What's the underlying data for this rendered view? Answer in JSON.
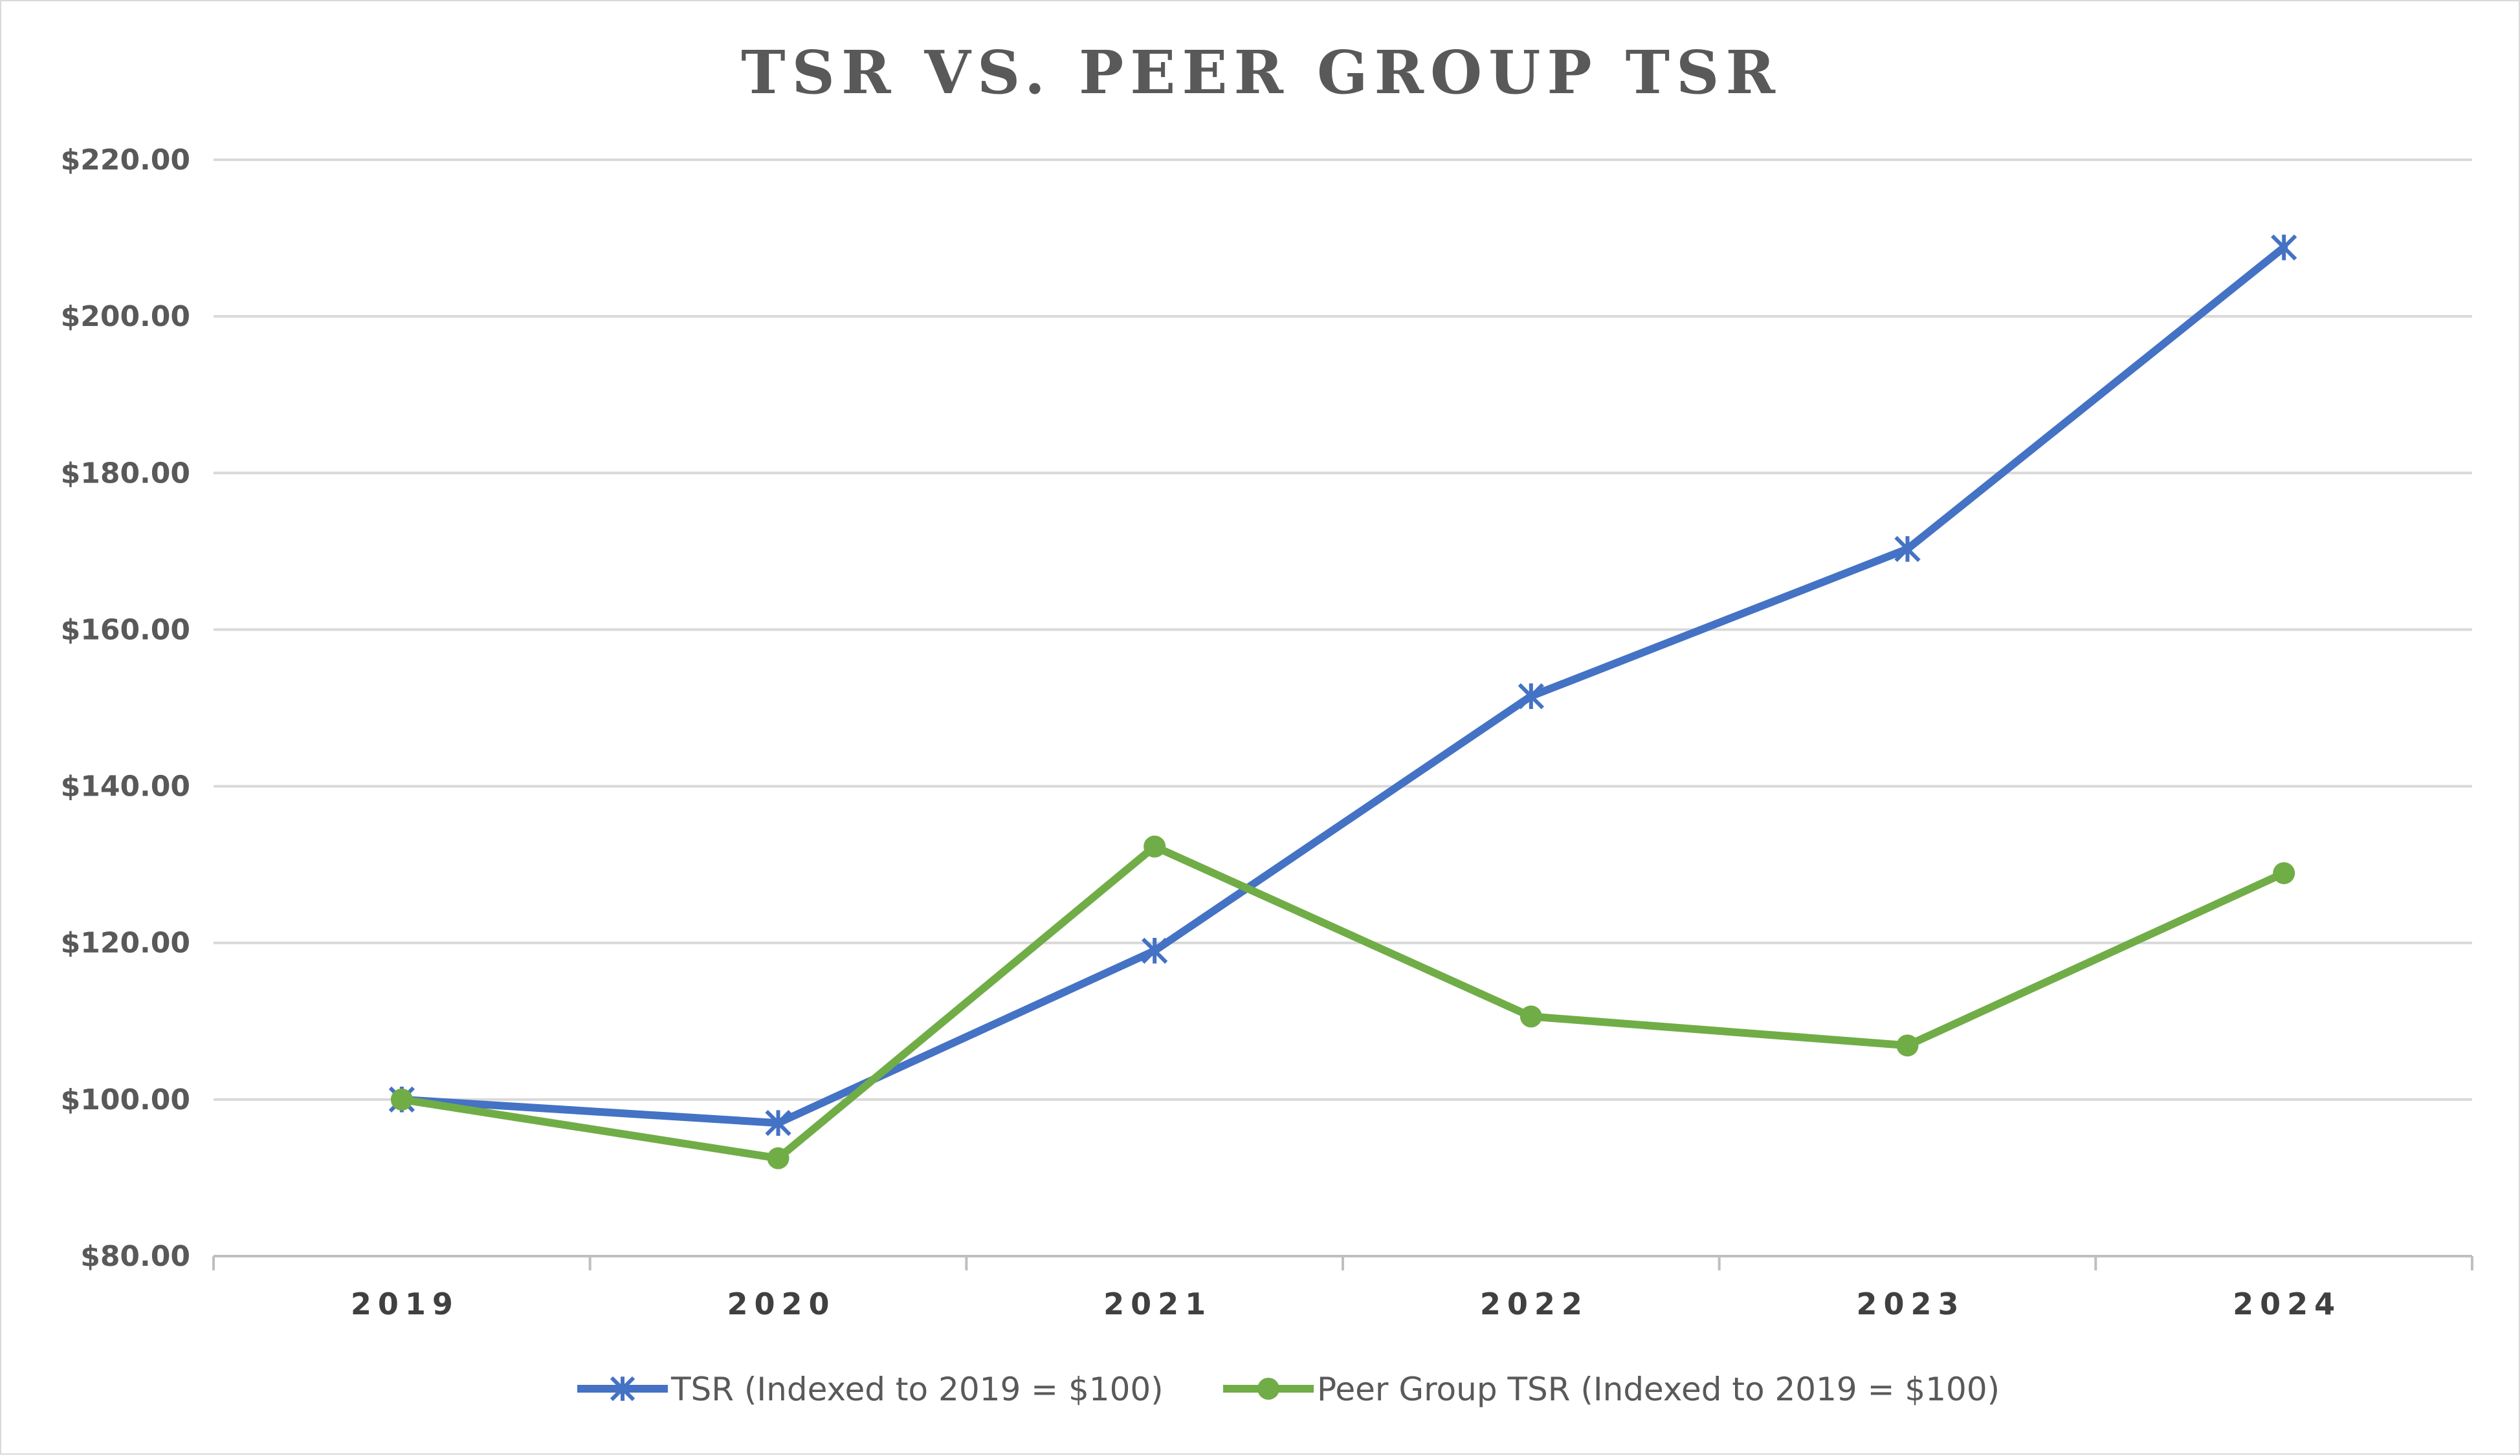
{
  "chart_data": {
    "type": "line",
    "title": "TSR VS. PEER GROUP TSR",
    "xlabel": "",
    "ylabel": "",
    "categories": [
      "2019",
      "2020",
      "2021",
      "2022",
      "2023",
      "2024"
    ],
    "ylim": [
      80,
      220
    ],
    "y_ticks": [
      80,
      100,
      120,
      140,
      160,
      180,
      200,
      220
    ],
    "y_tick_labels": [
      "$80.00",
      "$100.00",
      "$120.00",
      "$140.00",
      "$160.00",
      "$180.00",
      "$200.00",
      "$220.00"
    ],
    "grid": "horizontal",
    "legend_position": "bottom",
    "series": [
      {
        "name": "TSR (Indexed to 2019 = $100)",
        "values": [
          100.0,
          97.0,
          119.0,
          151.5,
          170.3,
          208.8
        ],
        "color": "#4472c4",
        "marker": "asterisk"
      },
      {
        "name": "Peer Group TSR (Indexed to 2019 = $100)",
        "values": [
          100.0,
          92.5,
          132.3,
          110.6,
          106.9,
          128.9
        ],
        "color": "#70ad47",
        "marker": "circle"
      }
    ]
  }
}
